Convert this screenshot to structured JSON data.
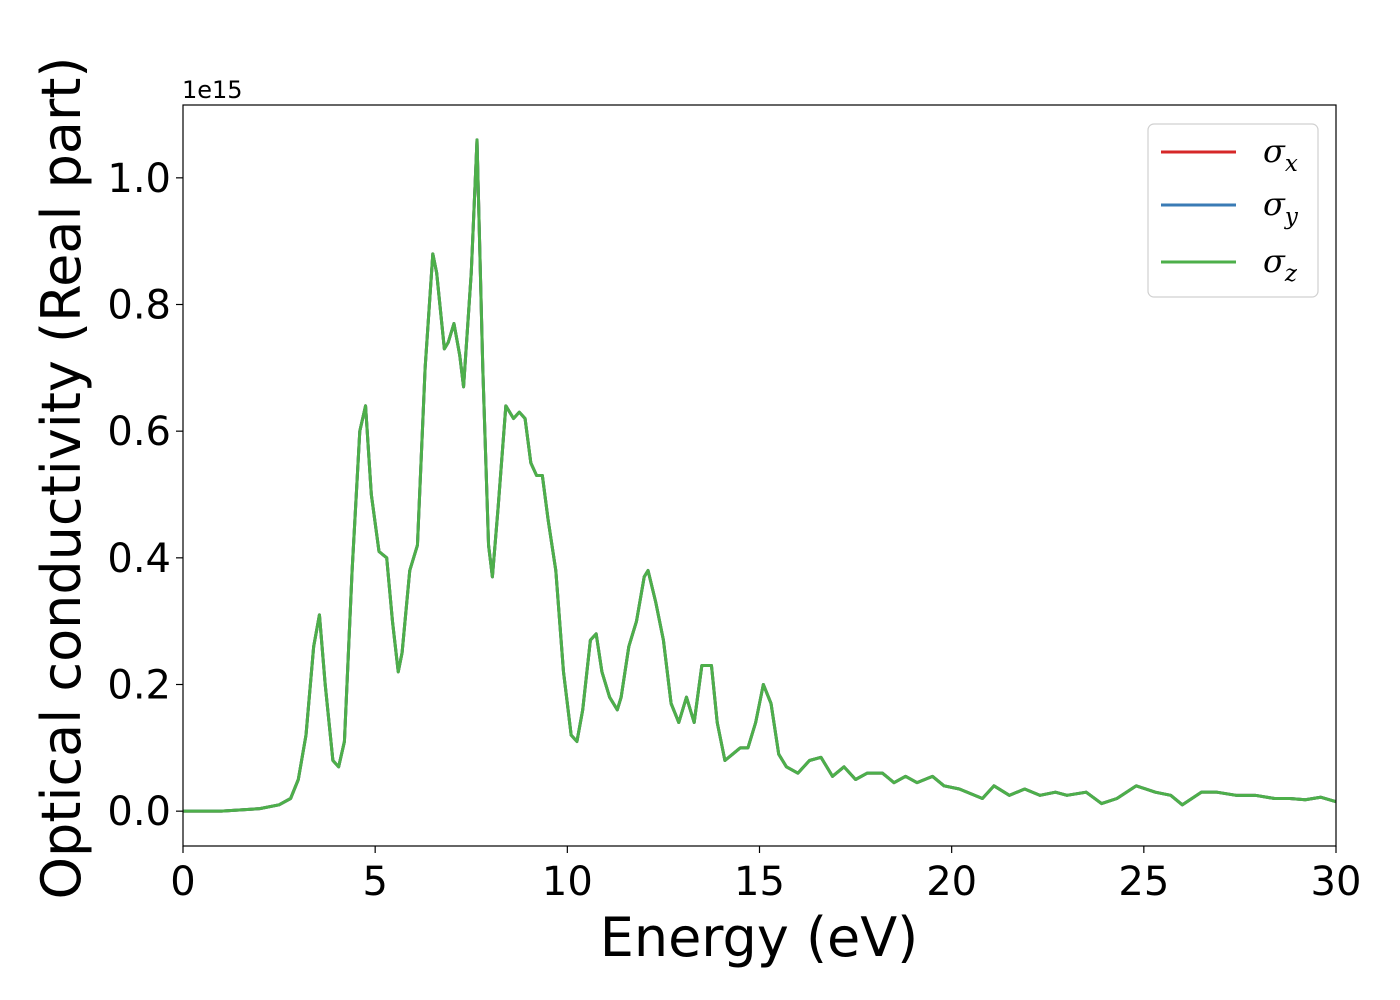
{
  "chart_data": {
    "type": "line",
    "xlabel": "Energy (eV)",
    "ylabel": "Optical conductivity (Real part)",
    "y_offset_text": "1e15",
    "xlim": [
      0,
      30
    ],
    "ylim": [
      -0.055,
      1.115
    ],
    "xticks": [
      0,
      5,
      10,
      15,
      20,
      25,
      30
    ],
    "yticks": [
      "0.0",
      "0.2",
      "0.4",
      "0.6",
      "0.8",
      "1.0"
    ],
    "ytick_values": [
      0,
      0.2,
      0.4,
      0.6,
      0.8,
      1.0
    ],
    "grid": false,
    "legend_position": "top-right",
    "series": [
      {
        "name": "σ_x",
        "legend_main": "σ",
        "legend_sub": "x",
        "color": "#d62728"
      },
      {
        "name": "σ_y",
        "legend_main": "σ",
        "legend_sub": "y",
        "color": "#3a7bb5"
      },
      {
        "name": "σ_z",
        "legend_main": "σ",
        "legend_sub": "z",
        "color": "#4daf4a"
      }
    ],
    "x": [
      0,
      1,
      2,
      2.5,
      2.8,
      3.0,
      3.2,
      3.4,
      3.55,
      3.7,
      3.9,
      4.05,
      4.2,
      4.4,
      4.6,
      4.75,
      4.9,
      5.1,
      5.3,
      5.45,
      5.6,
      5.7,
      5.9,
      6.1,
      6.3,
      6.5,
      6.6,
      6.8,
      6.9,
      7.05,
      7.2,
      7.3,
      7.5,
      7.65,
      7.8,
      7.95,
      8.05,
      8.2,
      8.4,
      8.6,
      8.75,
      8.9,
      9.05,
      9.2,
      9.35,
      9.5,
      9.7,
      9.9,
      10.1,
      10.25,
      10.4,
      10.6,
      10.75,
      10.9,
      11.1,
      11.3,
      11.4,
      11.6,
      11.8,
      12.0,
      12.1,
      12.3,
      12.5,
      12.7,
      12.9,
      13.1,
      13.3,
      13.5,
      13.75,
      13.9,
      14.1,
      14.3,
      14.5,
      14.7,
      14.9,
      15.1,
      15.3,
      15.5,
      15.7,
      16.0,
      16.3,
      16.6,
      16.9,
      17.2,
      17.5,
      17.8,
      18.2,
      18.5,
      18.8,
      19.1,
      19.5,
      19.8,
      20.2,
      20.8,
      21.1,
      21.5,
      21.9,
      22.3,
      22.7,
      23.0,
      23.5,
      23.9,
      24.3,
      24.8,
      25.3,
      25.7,
      26.0,
      26.5,
      26.9,
      27.4,
      27.9,
      28.4,
      28.8,
      29.2,
      29.6,
      30.0
    ],
    "values": {
      "σ_x": [
        0,
        0,
        0.004,
        0.01,
        0.02,
        0.05,
        0.12,
        0.26,
        0.31,
        0.2,
        0.08,
        0.07,
        0.11,
        0.38,
        0.6,
        0.64,
        0.5,
        0.41,
        0.4,
        0.3,
        0.22,
        0.25,
        0.38,
        0.42,
        0.7,
        0.88,
        0.85,
        0.73,
        0.74,
        0.77,
        0.72,
        0.67,
        0.85,
        1.06,
        0.7,
        0.42,
        0.37,
        0.48,
        0.64,
        0.62,
        0.63,
        0.62,
        0.55,
        0.53,
        0.53,
        0.46,
        0.38,
        0.22,
        0.12,
        0.11,
        0.16,
        0.27,
        0.28,
        0.22,
        0.18,
        0.16,
        0.18,
        0.26,
        0.3,
        0.37,
        0.38,
        0.33,
        0.27,
        0.17,
        0.14,
        0.18,
        0.14,
        0.23,
        0.23,
        0.14,
        0.08,
        0.09,
        0.1,
        0.1,
        0.14,
        0.2,
        0.17,
        0.09,
        0.07,
        0.06,
        0.08,
        0.085,
        0.055,
        0.07,
        0.05,
        0.06,
        0.06,
        0.045,
        0.055,
        0.045,
        0.055,
        0.04,
        0.035,
        0.02,
        0.04,
        0.025,
        0.035,
        0.025,
        0.03,
        0.025,
        0.03,
        0.012,
        0.02,
        0.04,
        0.03,
        0.025,
        0.01,
        0.03,
        0.03,
        0.025,
        0.025,
        0.02,
        0.02,
        0.018,
        0.022,
        0.015
      ],
      "σ_y": [
        0,
        0,
        0.004,
        0.01,
        0.02,
        0.05,
        0.12,
        0.26,
        0.31,
        0.2,
        0.08,
        0.07,
        0.11,
        0.38,
        0.6,
        0.64,
        0.5,
        0.41,
        0.4,
        0.3,
        0.22,
        0.25,
        0.38,
        0.42,
        0.7,
        0.88,
        0.85,
        0.73,
        0.74,
        0.77,
        0.72,
        0.67,
        0.85,
        1.06,
        0.7,
        0.42,
        0.37,
        0.48,
        0.64,
        0.62,
        0.63,
        0.62,
        0.55,
        0.53,
        0.53,
        0.46,
        0.38,
        0.22,
        0.12,
        0.11,
        0.16,
        0.27,
        0.28,
        0.22,
        0.18,
        0.16,
        0.18,
        0.26,
        0.3,
        0.37,
        0.38,
        0.33,
        0.27,
        0.17,
        0.14,
        0.18,
        0.14,
        0.23,
        0.23,
        0.14,
        0.08,
        0.09,
        0.1,
        0.1,
        0.14,
        0.2,
        0.17,
        0.09,
        0.07,
        0.06,
        0.08,
        0.085,
        0.055,
        0.07,
        0.05,
        0.06,
        0.06,
        0.045,
        0.055,
        0.045,
        0.055,
        0.04,
        0.035,
        0.02,
        0.04,
        0.025,
        0.035,
        0.025,
        0.03,
        0.025,
        0.03,
        0.012,
        0.02,
        0.04,
        0.03,
        0.025,
        0.01,
        0.03,
        0.03,
        0.025,
        0.025,
        0.02,
        0.02,
        0.018,
        0.022,
        0.015
      ],
      "σ_z": [
        0,
        0,
        0.004,
        0.01,
        0.02,
        0.05,
        0.12,
        0.26,
        0.31,
        0.2,
        0.08,
        0.07,
        0.11,
        0.38,
        0.6,
        0.64,
        0.5,
        0.41,
        0.4,
        0.3,
        0.22,
        0.25,
        0.38,
        0.42,
        0.7,
        0.88,
        0.85,
        0.73,
        0.74,
        0.77,
        0.72,
        0.67,
        0.85,
        1.06,
        0.7,
        0.42,
        0.37,
        0.48,
        0.64,
        0.62,
        0.63,
        0.62,
        0.55,
        0.53,
        0.53,
        0.46,
        0.38,
        0.22,
        0.12,
        0.11,
        0.16,
        0.27,
        0.28,
        0.22,
        0.18,
        0.16,
        0.18,
        0.26,
        0.3,
        0.37,
        0.38,
        0.33,
        0.27,
        0.17,
        0.14,
        0.18,
        0.14,
        0.23,
        0.23,
        0.14,
        0.08,
        0.09,
        0.1,
        0.1,
        0.14,
        0.2,
        0.17,
        0.09,
        0.07,
        0.06,
        0.08,
        0.085,
        0.055,
        0.07,
        0.05,
        0.06,
        0.06,
        0.045,
        0.055,
        0.045,
        0.055,
        0.04,
        0.035,
        0.02,
        0.04,
        0.025,
        0.035,
        0.025,
        0.03,
        0.025,
        0.03,
        0.012,
        0.02,
        0.04,
        0.03,
        0.025,
        0.01,
        0.03,
        0.03,
        0.025,
        0.025,
        0.02,
        0.02,
        0.018,
        0.022,
        0.015
      ]
    }
  }
}
